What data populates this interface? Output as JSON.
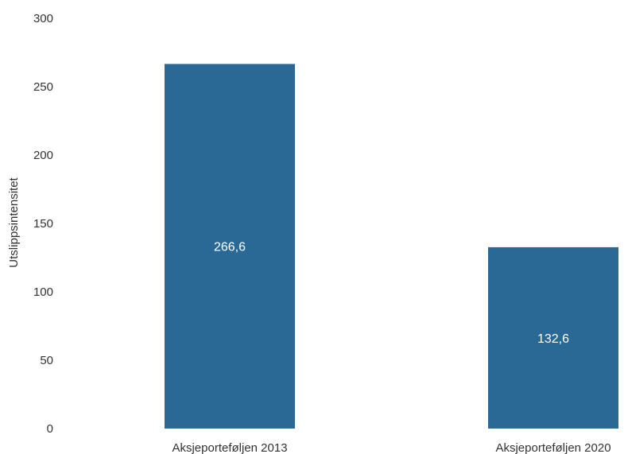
{
  "chart_data": {
    "type": "bar",
    "categories": [
      "Aksjeporteføljen 2013",
      "Aksjeporteføljen 2020"
    ],
    "values": [
      266.6,
      132.6
    ],
    "value_labels": [
      "266,6",
      "132,6"
    ],
    "title": "",
    "xlabel": "",
    "ylabel": "Utslippsintensitet",
    "ylim": [
      0,
      300
    ],
    "yticks": [
      0,
      50,
      100,
      150,
      200,
      250,
      300
    ],
    "grid": false,
    "bar_color": "#2a6896",
    "label_color": "#ffffff"
  }
}
